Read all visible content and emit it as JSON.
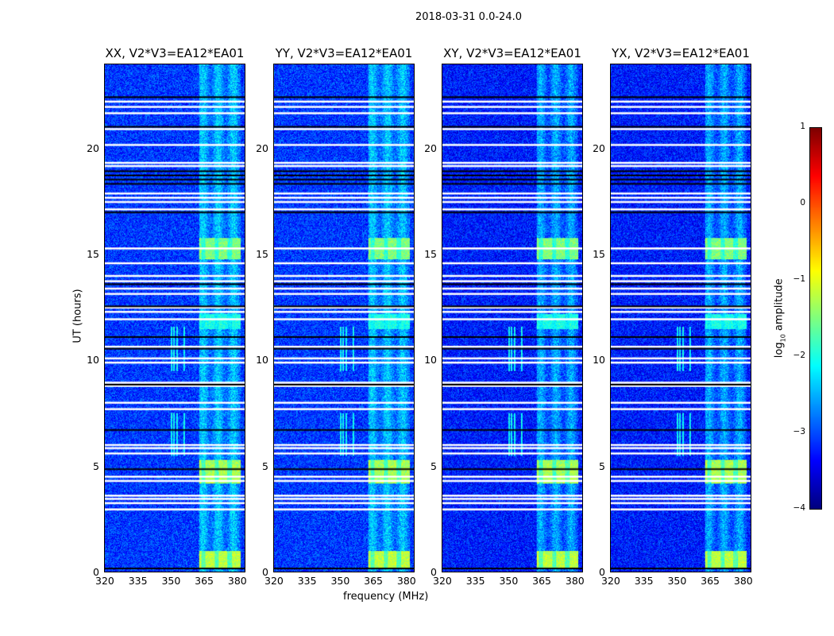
{
  "chart_data": {
    "type": "heatmap",
    "suptitle": "2018-03-31 0.0-24.0",
    "panels": [
      {
        "title": "XX, V2*V3=EA12*EA01",
        "pol": "XX"
      },
      {
        "title": "YY, V2*V3=EA12*EA01",
        "pol": "YY"
      },
      {
        "title": "XY, V2*V3=EA12*EA01",
        "pol": "XY"
      },
      {
        "title": "YX, V2*V3=EA12*EA01",
        "pol": "YX"
      }
    ],
    "xlabel": "frequency (MHz)",
    "ylabel": "UT (hours)",
    "xlim": [
      320,
      384
    ],
    "ylim": [
      0,
      24
    ],
    "xticks": [
      "320",
      "335",
      "350",
      "365",
      "380"
    ],
    "yticks": [
      "0",
      "5",
      "10",
      "15",
      "20"
    ],
    "colorbar": {
      "label": "log10 amplitude",
      "label_main": "log",
      "label_sub": "10",
      "label_rest": " amplitude",
      "range": [
        -4,
        1
      ],
      "ticks": [
        "1",
        "0",
        "−1",
        "−2",
        "−3",
        "−4"
      ],
      "colormap": "jet"
    },
    "background_level": -3.1,
    "bright_band_mhz": [
      363,
      382
    ],
    "bright_times_ut": [
      [
        0.2,
        1.0,
        -1.2
      ],
      [
        4.2,
        5.3,
        -1.3
      ],
      [
        14.8,
        15.8,
        -1.5
      ],
      [
        11.5,
        12.2,
        -2.0
      ]
    ],
    "rfi_mhz": [
      350.5,
      351.5,
      353,
      356
    ],
    "rfi_times_ut": [
      [
        5.5,
        7.5
      ],
      [
        9.5,
        11.6
      ]
    ],
    "flagged_white_ut": [
      22.25,
      22.0,
      21.7,
      20.95,
      20.2,
      19.35,
      19.2,
      17.9,
      17.7,
      17.5,
      17.15,
      15.3,
      14.6,
      14.0,
      13.75,
      13.4,
      13.15,
      12.5,
      12.3,
      11.95,
      10.65,
      10.1,
      9.9,
      8.95,
      8.8,
      8.0,
      7.7,
      6.0,
      5.85,
      5.6,
      4.5,
      4.3,
      3.6,
      3.45,
      3.25,
      2.95
    ],
    "flagged_black_ut": [
      22.45,
      21.05,
      18.95,
      18.75,
      18.55,
      18.35,
      17.0,
      13.6,
      12.55,
      11.1,
      10.55,
      8.85,
      6.7,
      4.85,
      0.15
    ]
  }
}
